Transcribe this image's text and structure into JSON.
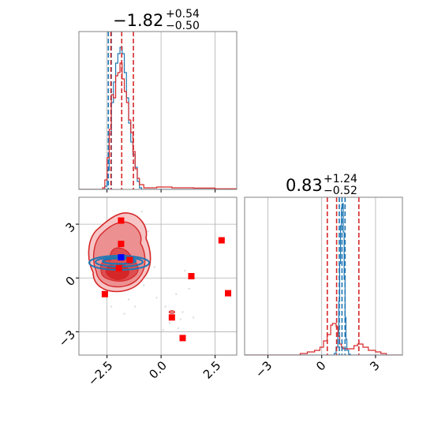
{
  "chart_data": {
    "type": "corner",
    "colors": {
      "blue": "#1f77b4",
      "red": "#d62728",
      "marker_red": "#ff0000",
      "marker_blue": "#0000ff",
      "grid": "#b0b0b0",
      "frame": "#808080"
    },
    "params": [
      {
        "title_value": "−1.82",
        "title_plus": "+0.54",
        "title_minus": "−0.50",
        "range": [
          -3.8,
          3.5
        ]
      },
      {
        "title_value": "0.83",
        "title_plus": "+1.24",
        "title_minus": "−0.52",
        "range": [
          -4.3,
          4.5
        ]
      }
    ],
    "ticks": [
      {
        "values": [
          -2.5,
          0.0,
          2.5
        ],
        "labels": [
          "−2.5",
          "0.0",
          "2.5"
        ]
      },
      {
        "values": [
          -3,
          0,
          3
        ],
        "labels": [
          "−3",
          "0",
          "3"
        ]
      }
    ],
    "hist_x": {
      "red_quantiles": [
        -2.32,
        -1.82,
        -1.28
      ],
      "blue_quantiles": [
        -2.44,
        -2.3
      ],
      "blue_steps": [
        [
          -3.8,
          0
        ],
        [
          -2.6,
          0.02
        ],
        [
          -2.5,
          0.12
        ],
        [
          -2.4,
          0.35
        ],
        [
          -2.3,
          0.55
        ],
        [
          -2.2,
          0.68
        ],
        [
          -2.1,
          0.8
        ],
        [
          -2.0,
          0.86
        ],
        [
          -1.9,
          0.9
        ],
        [
          -1.8,
          0.86
        ],
        [
          -1.7,
          0.74
        ],
        [
          -1.6,
          0.58
        ],
        [
          -1.5,
          0.42
        ],
        [
          -1.4,
          0.3
        ],
        [
          -1.3,
          0.22
        ],
        [
          -1.2,
          0.14
        ],
        [
          -1.1,
          0.05
        ],
        [
          -1.0,
          0.01
        ],
        [
          -0.9,
          0
        ]
      ],
      "red_steps": [
        [
          -3.8,
          0
        ],
        [
          -2.7,
          0.01
        ],
        [
          -2.6,
          0.06
        ],
        [
          -2.5,
          0.2
        ],
        [
          -2.4,
          0.38
        ],
        [
          -2.3,
          0.6
        ],
        [
          -2.2,
          0.58
        ],
        [
          -2.1,
          0.72
        ],
        [
          -2.0,
          0.74
        ],
        [
          -1.9,
          0.8
        ],
        [
          -1.8,
          0.7
        ],
        [
          -1.7,
          0.62
        ],
        [
          -1.6,
          0.55
        ],
        [
          -1.5,
          0.44
        ],
        [
          -1.4,
          0.36
        ],
        [
          -1.3,
          0.24
        ],
        [
          -1.2,
          0.13
        ],
        [
          -1.1,
          0.07
        ],
        [
          -1.0,
          0.03
        ],
        [
          -0.8,
          0.01
        ],
        [
          -0.2,
          0.015
        ],
        [
          0.5,
          0.01
        ],
        [
          1.5,
          0.008
        ],
        [
          2.5,
          0.004
        ],
        [
          3.5,
          0
        ]
      ]
    },
    "hist_y": {
      "red_quantiles": [
        0.31,
        0.83,
        2.07
      ],
      "blue_quantiles": [
        0.98,
        1.13,
        1.3
      ],
      "blue_steps": [
        [
          -4.3,
          0
        ],
        [
          0.7,
          0.01
        ],
        [
          0.8,
          0.05
        ],
        [
          0.9,
          0.14
        ],
        [
          0.95,
          0.34
        ],
        [
          1.0,
          0.58
        ],
        [
          1.05,
          0.82
        ],
        [
          1.1,
          0.93
        ],
        [
          1.15,
          0.96
        ],
        [
          1.2,
          0.78
        ],
        [
          1.25,
          0.48
        ],
        [
          1.3,
          0.24
        ],
        [
          1.35,
          0.1
        ],
        [
          1.4,
          0.03
        ],
        [
          1.5,
          0.005
        ],
        [
          1.6,
          0
        ]
      ],
      "red_steps": [
        [
          -4.3,
          0
        ],
        [
          -1.2,
          0.01
        ],
        [
          -0.8,
          0.02
        ],
        [
          -0.4,
          0.03
        ],
        [
          -0.1,
          0.05
        ],
        [
          0.1,
          0.09
        ],
        [
          0.3,
          0.13
        ],
        [
          0.5,
          0.19
        ],
        [
          0.6,
          0.2
        ],
        [
          0.8,
          0.18
        ],
        [
          0.9,
          0.12
        ],
        [
          1.0,
          0.07
        ],
        [
          1.1,
          0.05
        ],
        [
          1.2,
          0.04
        ],
        [
          1.5,
          0.04
        ],
        [
          1.8,
          0.06
        ],
        [
          2.0,
          0.07
        ],
        [
          2.3,
          0.05
        ],
        [
          2.6,
          0.03
        ],
        [
          3.0,
          0.02
        ],
        [
          3.3,
          0.01
        ],
        [
          3.6,
          0
        ]
      ]
    },
    "scatter_2d": {
      "red_squares": [
        [
          -1.85,
          3.2
        ],
        [
          -1.85,
          1.9
        ],
        [
          -1.95,
          0.55
        ],
        [
          -1.45,
          1.0
        ],
        [
          -2.6,
          -0.9
        ],
        [
          1.4,
          0.1
        ],
        [
          2.8,
          2.1
        ],
        [
          3.1,
          -0.85
        ],
        [
          0.5,
          -2.2
        ],
        [
          1.0,
          -3.35
        ]
      ],
      "blue_square": [
        -1.85,
        1.15
      ],
      "faint_samples": [
        [
          -2.8,
          2.6
        ],
        [
          -0.9,
          3.7
        ],
        [
          -0.5,
          1.4
        ],
        [
          -0.8,
          -0.4
        ],
        [
          -1.5,
          -1.2
        ],
        [
          -2.9,
          0.6
        ],
        [
          -0.6,
          2.6
        ],
        [
          -1.2,
          -1.6
        ],
        [
          -1.7,
          -2.0
        ],
        [
          0.2,
          -1.6
        ],
        [
          0.4,
          -2.5
        ],
        [
          0.8,
          -2.8
        ],
        [
          -0.9,
          2.0
        ],
        [
          -2.3,
          -1.6
        ],
        [
          1.0,
          -1.9
        ],
        [
          1.5,
          -2.2
        ],
        [
          0.6,
          -3.0
        ],
        [
          -1.1,
          2.8
        ],
        [
          -3.2,
          1.8
        ],
        [
          -2.4,
          3.2
        ],
        [
          0.1,
          -2.9
        ],
        [
          1.3,
          -0.6
        ],
        [
          -0.3,
          0.6
        ],
        [
          -0.2,
          -1.1
        ],
        [
          0.7,
          -0.9
        ],
        [
          -2.7,
          -0.2
        ],
        [
          1.1,
          0.4
        ],
        [
          0.9,
          -2.3
        ]
      ],
      "orange_contour": [
        0.5,
        -1.9
      ]
    }
  }
}
